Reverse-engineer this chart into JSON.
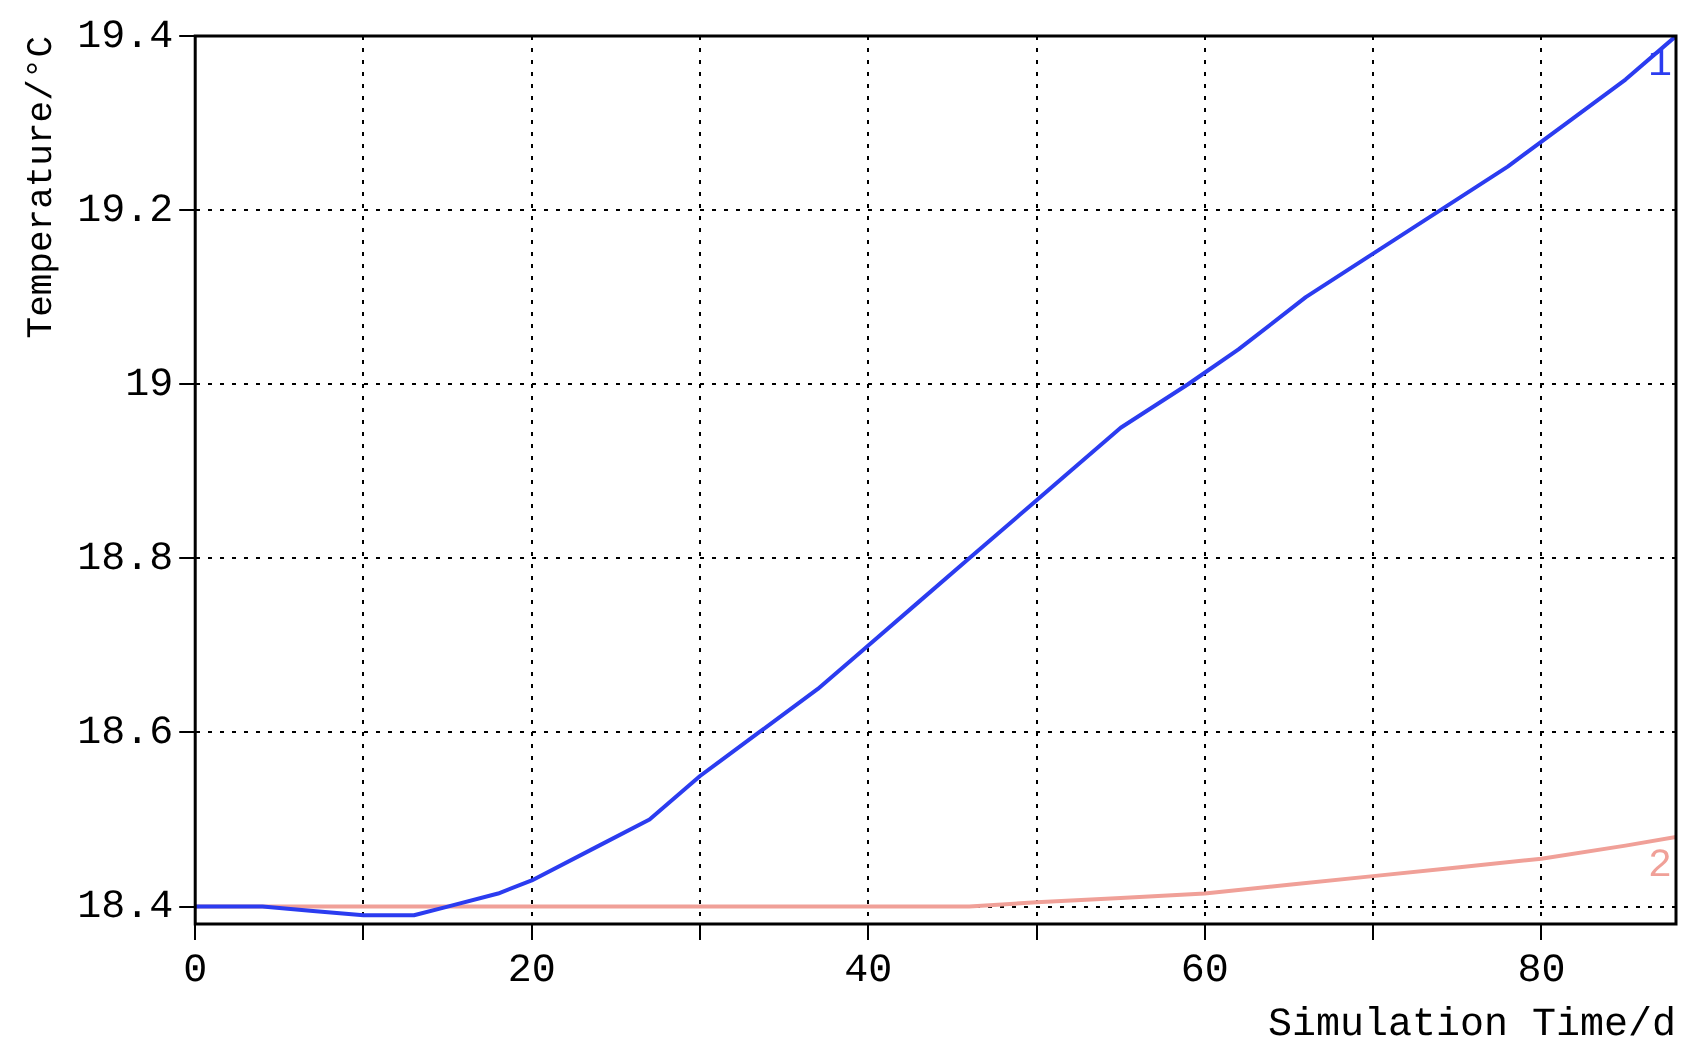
{
  "chart_data": {
    "type": "line",
    "xlabel": "Simulation Time/d",
    "ylabel": "Temperature/°C",
    "xlim": [
      0,
      88
    ],
    "xticks": [
      0,
      {
        "value": 10,
        "label": null
      },
      20,
      {
        "value": 30,
        "label": null
      },
      40,
      {
        "value": 50,
        "label": null
      },
      60,
      {
        "value": 70,
        "label": null
      },
      80
    ],
    "ylim": [
      18.38,
      19.4
    ],
    "yticks": [
      18.4,
      18.6,
      18.8,
      19,
      19.2,
      19.4
    ],
    "grid": true,
    "legend": false,
    "marker": "none",
    "line_style": "solid",
    "series": [
      {
        "name": "1",
        "color": "#2b3cf0",
        "x": [
          0,
          4,
          7,
          10,
          13,
          15,
          18,
          20,
          24,
          27,
          30,
          33.5,
          37,
          40,
          43,
          46,
          49,
          52,
          55,
          59,
          62,
          66,
          70,
          74,
          78,
          81.5,
          85,
          88
        ],
        "values": [
          18.4,
          18.4,
          18.395,
          18.39,
          18.39,
          18.4,
          18.415,
          18.43,
          18.47,
          18.5,
          18.55,
          18.6,
          18.65,
          18.7,
          18.75,
          18.8,
          18.85,
          18.9,
          18.95,
          19.0,
          19.04,
          19.1,
          19.15,
          19.2,
          19.25,
          19.3,
          19.35,
          19.4
        ]
      },
      {
        "name": "2",
        "color": "#f0a098",
        "x": [
          0,
          10,
          20,
          30,
          40,
          46,
          50,
          55,
          60,
          65,
          70,
          75,
          80,
          85,
          88
        ],
        "values": [
          18.4,
          18.4,
          18.4,
          18.4,
          18.4,
          18.4,
          18.405,
          18.41,
          18.415,
          18.425,
          18.435,
          18.445,
          18.455,
          18.47,
          18.48
        ]
      }
    ]
  }
}
